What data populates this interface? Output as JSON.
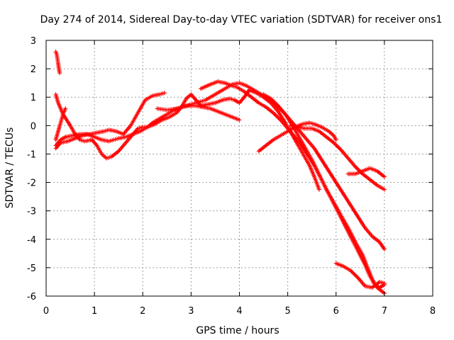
{
  "chart_data": {
    "type": "scatter",
    "title": "Day 274 of 2014, Sidereal Day-to-day VTEC variation (SDTVAR) for receiver ons1",
    "xlabel": "GPS time / hours",
    "ylabel": "SDTVAR / TECUs",
    "xlim": [
      0,
      8
    ],
    "ylim": [
      -6,
      3
    ],
    "x_ticks": [
      "0",
      "1",
      "2",
      "3",
      "4",
      "5",
      "6",
      "7",
      "8"
    ],
    "y_ticks": [
      "-6",
      "-5",
      "-4",
      "-3",
      "-2",
      "-1",
      "0",
      "1",
      "2",
      "3"
    ],
    "grid": true,
    "marker": "+",
    "series_color": "#ff0000",
    "tracks": [
      {
        "name": "track-1",
        "points": [
          [
            0.2,
            2.6
          ],
          [
            0.22,
            2.5
          ],
          [
            0.24,
            2.3
          ],
          [
            0.26,
            2.05
          ],
          [
            0.28,
            1.85
          ]
        ]
      },
      {
        "name": "track-2",
        "points": [
          [
            0.2,
            1.1
          ],
          [
            0.25,
            0.8
          ],
          [
            0.35,
            0.4
          ],
          [
            0.5,
            0.0
          ],
          [
            0.6,
            -0.3
          ],
          [
            0.7,
            -0.5
          ],
          [
            0.8,
            -0.55
          ],
          [
            0.95,
            -0.5
          ],
          [
            1.05,
            -0.7
          ],
          [
            1.15,
            -1.0
          ],
          [
            1.25,
            -1.15
          ],
          [
            1.35,
            -1.1
          ],
          [
            1.5,
            -0.9
          ],
          [
            1.65,
            -0.6
          ],
          [
            1.8,
            -0.3
          ],
          [
            1.9,
            -0.1
          ],
          [
            2.0,
            -0.05
          ],
          [
            2.1,
            -0.05
          ],
          [
            2.2,
            0.1
          ],
          [
            2.35,
            0.25
          ],
          [
            2.5,
            0.4
          ],
          [
            2.65,
            0.55
          ],
          [
            2.8,
            0.65
          ],
          [
            2.95,
            0.7
          ],
          [
            3.1,
            0.7
          ],
          [
            3.25,
            0.65
          ],
          [
            3.4,
            0.6
          ],
          [
            3.55,
            0.5
          ],
          [
            3.7,
            0.4
          ],
          [
            3.85,
            0.3
          ],
          [
            4.0,
            0.2
          ]
        ]
      },
      {
        "name": "track-3",
        "points": [
          [
            0.2,
            -0.8
          ],
          [
            0.3,
            -0.6
          ],
          [
            0.45,
            -0.55
          ],
          [
            0.6,
            -0.45
          ],
          [
            0.75,
            -0.35
          ],
          [
            0.9,
            -0.3
          ],
          [
            1.05,
            -0.25
          ],
          [
            1.2,
            -0.2
          ],
          [
            1.3,
            -0.15
          ],
          [
            1.45,
            -0.2
          ],
          [
            1.6,
            -0.3
          ],
          [
            1.75,
            0.0
          ],
          [
            1.85,
            0.3
          ],
          [
            1.95,
            0.6
          ],
          [
            2.05,
            0.9
          ],
          [
            2.2,
            1.05
          ],
          [
            2.35,
            1.1
          ],
          [
            2.45,
            1.15
          ]
        ]
      },
      {
        "name": "track-4",
        "points": [
          [
            0.2,
            -0.7
          ],
          [
            0.3,
            -0.5
          ],
          [
            0.4,
            -0.4
          ],
          [
            0.55,
            -0.35
          ],
          [
            0.7,
            -0.3
          ],
          [
            0.85,
            -0.3
          ],
          [
            1.0,
            -0.4
          ],
          [
            1.15,
            -0.5
          ],
          [
            1.3,
            -0.55
          ],
          [
            1.5,
            -0.45
          ],
          [
            1.65,
            -0.4
          ],
          [
            1.8,
            -0.3
          ],
          [
            1.95,
            -0.2
          ],
          [
            2.1,
            -0.05
          ],
          [
            2.25,
            0.05
          ],
          [
            2.4,
            0.2
          ],
          [
            2.55,
            0.3
          ],
          [
            2.7,
            0.45
          ],
          [
            2.8,
            0.65
          ],
          [
            2.9,
            0.95
          ],
          [
            3.0,
            1.1
          ],
          [
            3.1,
            0.9
          ],
          [
            3.2,
            0.7
          ],
          [
            3.35,
            0.75
          ],
          [
            3.5,
            0.8
          ],
          [
            3.65,
            0.9
          ],
          [
            3.8,
            0.95
          ],
          [
            3.9,
            0.9
          ],
          [
            4.0,
            0.8
          ],
          [
            4.1,
            1.0
          ],
          [
            4.2,
            1.25
          ],
          [
            4.35,
            1.15
          ],
          [
            4.5,
            1.0
          ],
          [
            4.65,
            0.8
          ],
          [
            4.8,
            0.5
          ],
          [
            4.95,
            0.1
          ],
          [
            5.05,
            -0.2
          ],
          [
            5.15,
            -0.5
          ],
          [
            5.25,
            -0.8
          ],
          [
            5.35,
            -1.1
          ],
          [
            5.45,
            -1.4
          ],
          [
            5.55,
            -1.8
          ],
          [
            5.65,
            -2.25
          ]
        ]
      },
      {
        "name": "track-5",
        "points": [
          [
            0.2,
            -0.5
          ],
          [
            0.25,
            -0.2
          ],
          [
            0.3,
            0.1
          ],
          [
            0.35,
            0.4
          ],
          [
            0.4,
            0.6
          ]
        ]
      },
      {
        "name": "track-6",
        "points": [
          [
            2.3,
            0.6
          ],
          [
            2.5,
            0.55
          ],
          [
            2.7,
            0.6
          ],
          [
            2.9,
            0.7
          ],
          [
            3.1,
            0.8
          ],
          [
            3.3,
            0.9
          ],
          [
            3.5,
            1.1
          ],
          [
            3.7,
            1.3
          ],
          [
            3.85,
            1.45
          ],
          [
            4.0,
            1.5
          ],
          [
            4.15,
            1.4
          ],
          [
            4.35,
            1.2
          ],
          [
            4.55,
            1.0
          ],
          [
            4.75,
            0.75
          ],
          [
            4.95,
            0.4
          ],
          [
            5.1,
            0.0
          ],
          [
            5.2,
            -0.3
          ],
          [
            5.3,
            -0.6
          ],
          [
            5.4,
            -0.9
          ],
          [
            5.5,
            -1.2
          ],
          [
            5.6,
            -1.55
          ],
          [
            5.7,
            -1.9
          ],
          [
            5.8,
            -2.25
          ],
          [
            5.95,
            -2.7
          ],
          [
            6.1,
            -3.15
          ],
          [
            6.25,
            -3.6
          ],
          [
            6.4,
            -4.1
          ],
          [
            6.55,
            -4.55
          ],
          [
            6.65,
            -5.0
          ],
          [
            6.75,
            -5.4
          ],
          [
            6.85,
            -5.7
          ],
          [
            7.0,
            -5.9
          ]
        ]
      },
      {
        "name": "track-7",
        "points": [
          [
            3.2,
            1.3
          ],
          [
            3.4,
            1.45
          ],
          [
            3.55,
            1.55
          ],
          [
            3.7,
            1.5
          ],
          [
            3.85,
            1.4
          ],
          [
            3.95,
            1.35
          ],
          [
            4.1,
            1.2
          ],
          [
            4.25,
            1.0
          ],
          [
            4.4,
            0.8
          ],
          [
            4.55,
            0.65
          ],
          [
            4.7,
            0.45
          ],
          [
            4.85,
            0.2
          ],
          [
            5.0,
            -0.1
          ],
          [
            5.1,
            -0.3
          ],
          [
            5.25,
            -0.6
          ],
          [
            5.4,
            -1.0
          ],
          [
            5.55,
            -1.4
          ],
          [
            5.7,
            -1.9
          ],
          [
            5.85,
            -2.4
          ],
          [
            6.0,
            -2.9
          ],
          [
            6.15,
            -3.4
          ],
          [
            6.3,
            -3.9
          ],
          [
            6.45,
            -4.4
          ],
          [
            6.6,
            -4.9
          ],
          [
            6.7,
            -5.3
          ],
          [
            6.8,
            -5.6
          ],
          [
            6.9,
            -5.7
          ],
          [
            7.0,
            -5.6
          ]
        ]
      },
      {
        "name": "track-8",
        "points": [
          [
            4.5,
            1.1
          ],
          [
            4.65,
            0.95
          ],
          [
            4.8,
            0.7
          ],
          [
            4.95,
            0.4
          ],
          [
            5.1,
            0.1
          ],
          [
            5.25,
            -0.2
          ],
          [
            5.4,
            -0.5
          ],
          [
            5.55,
            -0.8
          ],
          [
            5.7,
            -1.2
          ],
          [
            5.85,
            -1.6
          ],
          [
            6.0,
            -2.0
          ],
          [
            6.15,
            -2.4
          ],
          [
            6.3,
            -2.8
          ],
          [
            6.45,
            -3.2
          ],
          [
            6.6,
            -3.6
          ],
          [
            6.75,
            -3.9
          ],
          [
            6.9,
            -4.1
          ],
          [
            7.0,
            -4.35
          ]
        ]
      },
      {
        "name": "track-9",
        "points": [
          [
            4.4,
            -0.9
          ],
          [
            4.55,
            -0.7
          ],
          [
            4.7,
            -0.5
          ],
          [
            4.85,
            -0.35
          ],
          [
            5.0,
            -0.2
          ],
          [
            5.15,
            -0.05
          ],
          [
            5.3,
            0.05
          ],
          [
            5.45,
            0.1
          ],
          [
            5.55,
            0.05
          ],
          [
            5.7,
            -0.05
          ],
          [
            5.85,
            -0.2
          ],
          [
            5.95,
            -0.35
          ],
          [
            6.0,
            -0.5
          ]
        ]
      },
      {
        "name": "track-10",
        "points": [
          [
            5.05,
            0.0
          ],
          [
            5.2,
            -0.05
          ],
          [
            5.35,
            -0.1
          ],
          [
            5.5,
            -0.1
          ],
          [
            5.65,
            -0.2
          ],
          [
            5.8,
            -0.4
          ],
          [
            5.95,
            -0.6
          ],
          [
            6.1,
            -0.85
          ],
          [
            6.25,
            -1.15
          ],
          [
            6.4,
            -1.45
          ],
          [
            6.55,
            -1.7
          ],
          [
            6.7,
            -1.9
          ],
          [
            6.85,
            -2.1
          ],
          [
            7.0,
            -2.25
          ]
        ]
      },
      {
        "name": "track-11",
        "points": [
          [
            6.25,
            -1.7
          ],
          [
            6.4,
            -1.7
          ],
          [
            6.55,
            -1.6
          ],
          [
            6.7,
            -1.5
          ],
          [
            6.85,
            -1.6
          ],
          [
            7.0,
            -1.8
          ]
        ]
      },
      {
        "name": "track-12",
        "points": [
          [
            6.0,
            -4.85
          ],
          [
            6.15,
            -4.95
          ],
          [
            6.3,
            -5.1
          ],
          [
            6.45,
            -5.35
          ],
          [
            6.6,
            -5.65
          ],
          [
            6.75,
            -5.7
          ],
          [
            6.9,
            -5.5
          ],
          [
            7.0,
            -5.55
          ]
        ]
      }
    ]
  }
}
